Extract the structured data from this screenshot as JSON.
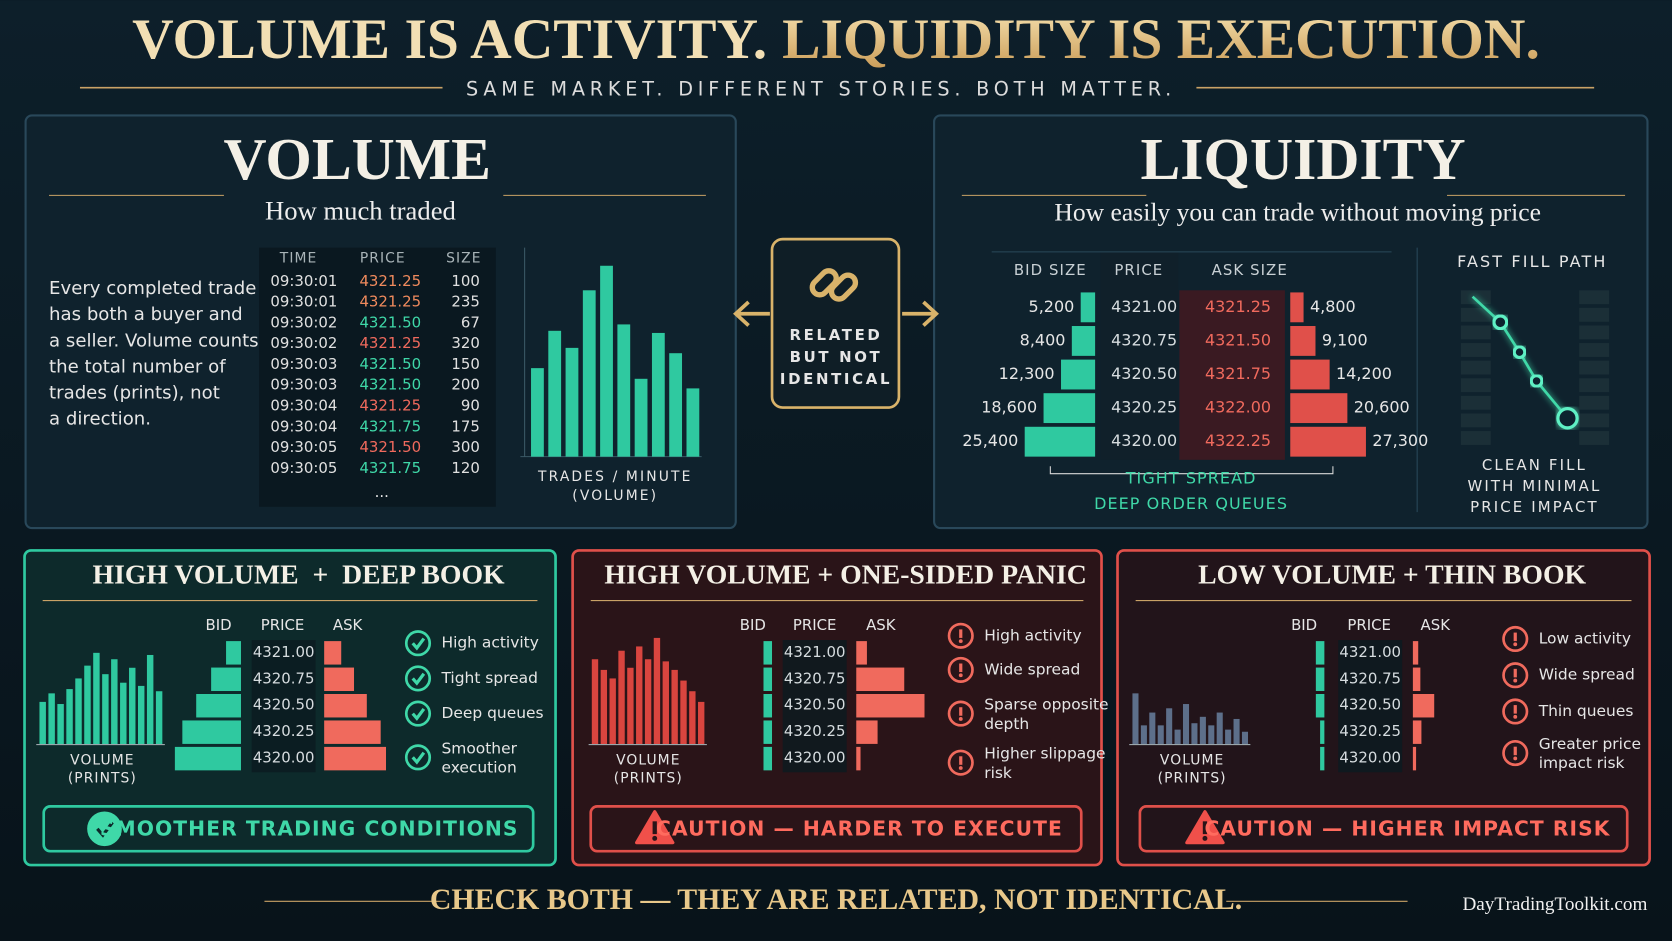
{
  "header": {
    "title_part1": "VOLUME IS ACTIVITY.",
    "title_part2": "LIQUIDITY IS EXECUTION.",
    "subtitle": "SAME MARKET. DIFFERENT STORIES. BOTH MATTER."
  },
  "volume": {
    "title": "VOLUME",
    "subtitle": "How much traded",
    "description": [
      "Every completed trade",
      "has both a buyer and",
      "a seller. Volume counts",
      "the total number of",
      "trades (prints), not",
      "a direction."
    ],
    "tape": {
      "columns": [
        "TIME",
        "PRICE",
        "SIZE"
      ],
      "rows": [
        {
          "cells": [
            "09:30:01",
            "4321.25",
            "100"
          ],
          "color": "#f08a5d"
        },
        {
          "cells": [
            "09:30:01",
            "4321.25",
            "235"
          ],
          "color": "#f08a5d"
        },
        {
          "cells": [
            "09:30:02",
            "4321.50",
            "67"
          ],
          "color": "#3fd8a8"
        },
        {
          "cells": [
            "09:30:02",
            "4321.25",
            "320"
          ],
          "color": "#f06a5d"
        },
        {
          "cells": [
            "09:30:03",
            "4321.50",
            "150"
          ],
          "color": "#3fd8a8"
        },
        {
          "cells": [
            "09:30:03",
            "4321.50",
            "200"
          ],
          "color": "#3fd8a8"
        },
        {
          "cells": [
            "09:30:04",
            "4321.25",
            "90"
          ],
          "color": "#f06a5d"
        },
        {
          "cells": [
            "09:30:04",
            "4321.75",
            "175"
          ],
          "color": "#3fd8a8"
        },
        {
          "cells": [
            "09:30:05",
            "4321.50",
            "300"
          ],
          "color": "#f06a5d"
        },
        {
          "cells": [
            "09:30:05",
            "4321.75",
            "120"
          ],
          "color": "#3fd8a8"
        }
      ],
      "more": "..."
    },
    "chart": {
      "label": [
        "TRADES / MINUTE",
        "(VOLUME)"
      ],
      "values": [
        83,
        118,
        102,
        156,
        179,
        124,
        73,
        116,
        97,
        64
      ],
      "color": "#2fc9a0"
    }
  },
  "center": {
    "label": [
      "RELATED",
      "BUT NOT",
      "IDENTICAL"
    ]
  },
  "liquidity": {
    "title": "LIQUIDITY",
    "subtitle": "How easily you can trade without moving price",
    "book": {
      "columns": [
        "BID SIZE",
        "PRICE",
        "ASK SIZE"
      ],
      "bids": [
        {
          "size": {
            "value": 5200,
            "label": "5,200"
          },
          "price": "4321.00"
        },
        {
          "size": {
            "value": 8400,
            "label": "8,400"
          },
          "price": "4320.75"
        },
        {
          "size": {
            "value": 12300,
            "label": "12,300"
          },
          "price": "4320.50"
        },
        {
          "size": {
            "value": 18600,
            "label": "18,600"
          },
          "price": "4320.25"
        },
        {
          "size": {
            "value": 25400,
            "label": "25,400"
          },
          "price": "4320.00"
        }
      ],
      "asks": [
        {
          "price": "4321.25",
          "size": {
            "value": 4800,
            "label": "4,800"
          }
        },
        {
          "price": "4321.50",
          "size": {
            "value": 9100,
            "label": "9,100"
          }
        },
        {
          "price": "4321.75",
          "size": {
            "value": 14200,
            "label": "14,200"
          }
        },
        {
          "price": "4322.00",
          "size": {
            "value": 20600,
            "label": "20,600"
          }
        },
        {
          "price": "4322.25",
          "size": {
            "value": 27300,
            "label": "27,300"
          }
        }
      ],
      "notes": [
        "TIGHT SPREAD",
        "DEEP ORDER QUEUES"
      ]
    },
    "fast_fill": {
      "title": "FAST FILL PATH",
      "caption": [
        "CLEAN FILL",
        "WITH MINIMAL",
        "PRICE IMPACT"
      ]
    }
  },
  "scenarios": [
    {
      "title": "HIGH VOLUME  +  DEEP BOOK",
      "color": "#2fc9a0",
      "bar_color": "#2fc9a0",
      "volume_label": [
        "VOLUME",
        "(PRINTS)"
      ],
      "volume_bars": [
        40,
        48,
        38,
        52,
        62,
        74,
        86,
        66,
        80,
        58,
        72,
        55,
        84,
        50
      ],
      "columns": [
        "BID",
        "PRICE",
        "ASK"
      ],
      "prices": [
        "4321.00",
        "4320.75",
        "4320.50",
        "4320.25",
        "4320.00"
      ],
      "bid_depth": [
        14,
        28,
        42,
        55,
        62
      ],
      "ask_depth": [
        16,
        28,
        40,
        53,
        58
      ],
      "items": [
        {
          "icon": "check",
          "lines": [
            "High activity"
          ]
        },
        {
          "icon": "check",
          "lines": [
            "Tight spread"
          ]
        },
        {
          "icon": "check",
          "lines": [
            "Deep queues"
          ]
        },
        {
          "icon": "check",
          "lines": [
            "Smoother",
            "execution"
          ]
        }
      ],
      "banner": {
        "icon": "check",
        "text": "SMOOTHER TRADING CONDITIONS"
      }
    },
    {
      "title": "HIGH VOLUME + ONE-SIDED PANIC",
      "color": "#e0504a",
      "bar_color": "#d9453f",
      "volume_label": [
        "VOLUME",
        "(PRINTS)"
      ],
      "volume_bars": [
        80,
        70,
        62,
        88,
        72,
        92,
        80,
        100,
        78,
        70,
        60,
        50,
        40
      ],
      "columns": [
        "BID",
        "PRICE",
        "ASK"
      ],
      "prices": [
        "4321.00",
        "4320.75",
        "4320.50",
        "4320.25",
        "4320.00"
      ],
      "bid_depth": [
        8,
        8,
        8,
        8,
        8
      ],
      "ask_depth": [
        10,
        45,
        64,
        20,
        4
      ],
      "items": [
        {
          "icon": "alert",
          "lines": [
            "High activity"
          ]
        },
        {
          "icon": "alert",
          "lines": [
            "Wide spread"
          ]
        },
        {
          "icon": "alert",
          "lines": [
            "Sparse opposite",
            "depth"
          ]
        },
        {
          "icon": "alert",
          "lines": [
            "Higher slippage",
            "risk"
          ]
        }
      ],
      "banner": {
        "icon": "warning",
        "text": "CAUTION — HARDER TO EXECUTE"
      }
    },
    {
      "title": "LOW VOLUME + THIN BOOK",
      "color": "#e0504a",
      "bar_color": "#5d6f8a",
      "volume_label": [
        "VOLUME",
        "(PRINTS)"
      ],
      "volume_bars": [
        48,
        18,
        30,
        18,
        34,
        14,
        38,
        20,
        26,
        18,
        30,
        14,
        24,
        12
      ],
      "columns": [
        "BID",
        "PRICE",
        "ASK"
      ],
      "prices": [
        "4321.00",
        "4320.75",
        "4320.50",
        "4320.25",
        "4320.00"
      ],
      "bid_depth": [
        8,
        8,
        8,
        4,
        4
      ],
      "ask_depth": [
        5,
        7,
        20,
        8,
        3
      ],
      "items": [
        {
          "icon": "alert",
          "lines": [
            "Low activity"
          ]
        },
        {
          "icon": "alert",
          "lines": [
            "Wide spread"
          ]
        },
        {
          "icon": "alert",
          "lines": [
            "Thin queues"
          ]
        },
        {
          "icon": "alert",
          "lines": [
            "Greater price",
            "impact risk"
          ]
        }
      ],
      "banner": {
        "icon": "warning",
        "text": "CAUTION — HIGHER IMPACT RISK"
      }
    }
  ],
  "footer": {
    "text": "CHECK BOTH — THEY ARE RELATED, NOT IDENTICAL.",
    "credit": "DayTradingToolkit.com"
  }
}
